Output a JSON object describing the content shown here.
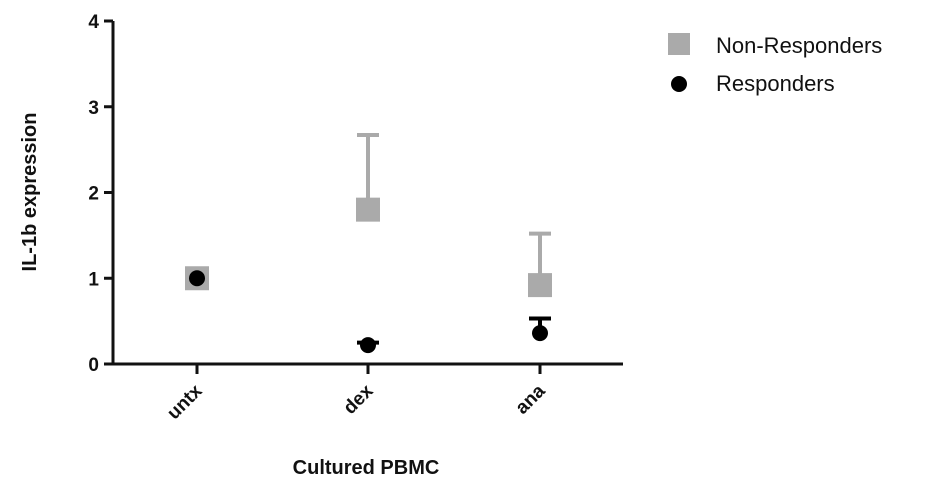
{
  "chart_data": {
    "type": "scatter",
    "title": "",
    "xlabel": "Cultured PBMC",
    "ylabel": "IL-1b expression",
    "categories": [
      "untx",
      "dex",
      "ana"
    ],
    "ylim": [
      0,
      4
    ],
    "yticks": [
      "0",
      "1",
      "2",
      "3",
      "4"
    ],
    "grid": false,
    "legend_position": "top-right",
    "series": [
      {
        "name": "Non-Responders",
        "marker": "square",
        "color": "#aaaaaa",
        "values": [
          1.0,
          1.8,
          0.92
        ],
        "error_upper": [
          0,
          0.87,
          0.6
        ]
      },
      {
        "name": "Responders",
        "marker": "circle",
        "color": "#000000",
        "values": [
          1.0,
          0.22,
          0.36
        ],
        "error_upper": [
          0,
          0.03,
          0.17
        ]
      }
    ]
  }
}
